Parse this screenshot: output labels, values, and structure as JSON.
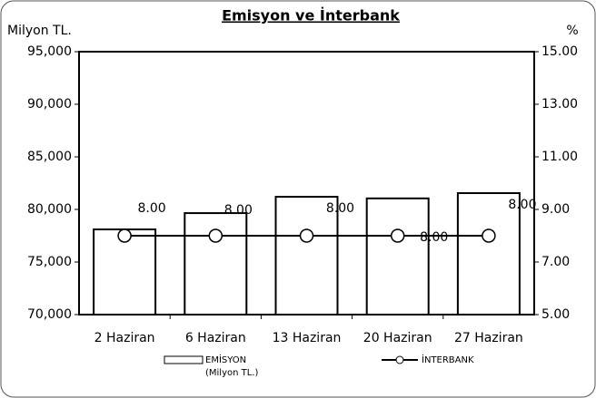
{
  "chart_data": {
    "type": "bar",
    "title": "Emisyon ve İnterbank",
    "ylabel": "Milyon TL.",
    "y2label": "%",
    "categories": [
      "2 Haziran",
      "6 Haziran",
      "13 Haziran",
      "20 Haziran",
      "27 Haziran"
    ],
    "series": [
      {
        "name": "EMİSYON",
        "type": "bar",
        "color": "#ffffff",
        "values": [
          78100,
          79650,
          81200,
          81050,
          81550
        ]
      },
      {
        "name": "İNTERBANK",
        "type": "line",
        "axis": "y2",
        "color": "#000000",
        "values": [
          8,
          8,
          8,
          8,
          8
        ],
        "value_labels": [
          "8.00",
          "8.00",
          "8.00",
          "8.00",
          "8.00"
        ]
      }
    ],
    "legend_subtitle": "(Milyon TL.)",
    "ylim": [
      70000,
      95000
    ],
    "yticks": [
      {
        "value": 70000,
        "label": "70,000"
      },
      {
        "value": 75000,
        "label": "75,000"
      },
      {
        "value": 80000,
        "label": "80,000"
      },
      {
        "value": 85000,
        "label": "85,000"
      },
      {
        "value": 90000,
        "label": "90,000"
      },
      {
        "value": 95000,
        "label": "95,000"
      }
    ],
    "y2lim": [
      5,
      15
    ],
    "y2ticks": [
      {
        "value": 5,
        "label": "5.00"
      },
      {
        "value": 7,
        "label": "7.00"
      },
      {
        "value": 9,
        "label": "9.00"
      },
      {
        "value": 11,
        "label": "11.00"
      },
      {
        "value": 13,
        "label": "13.00"
      },
      {
        "value": 15,
        "label": "15.00"
      }
    ],
    "grid": false
  }
}
